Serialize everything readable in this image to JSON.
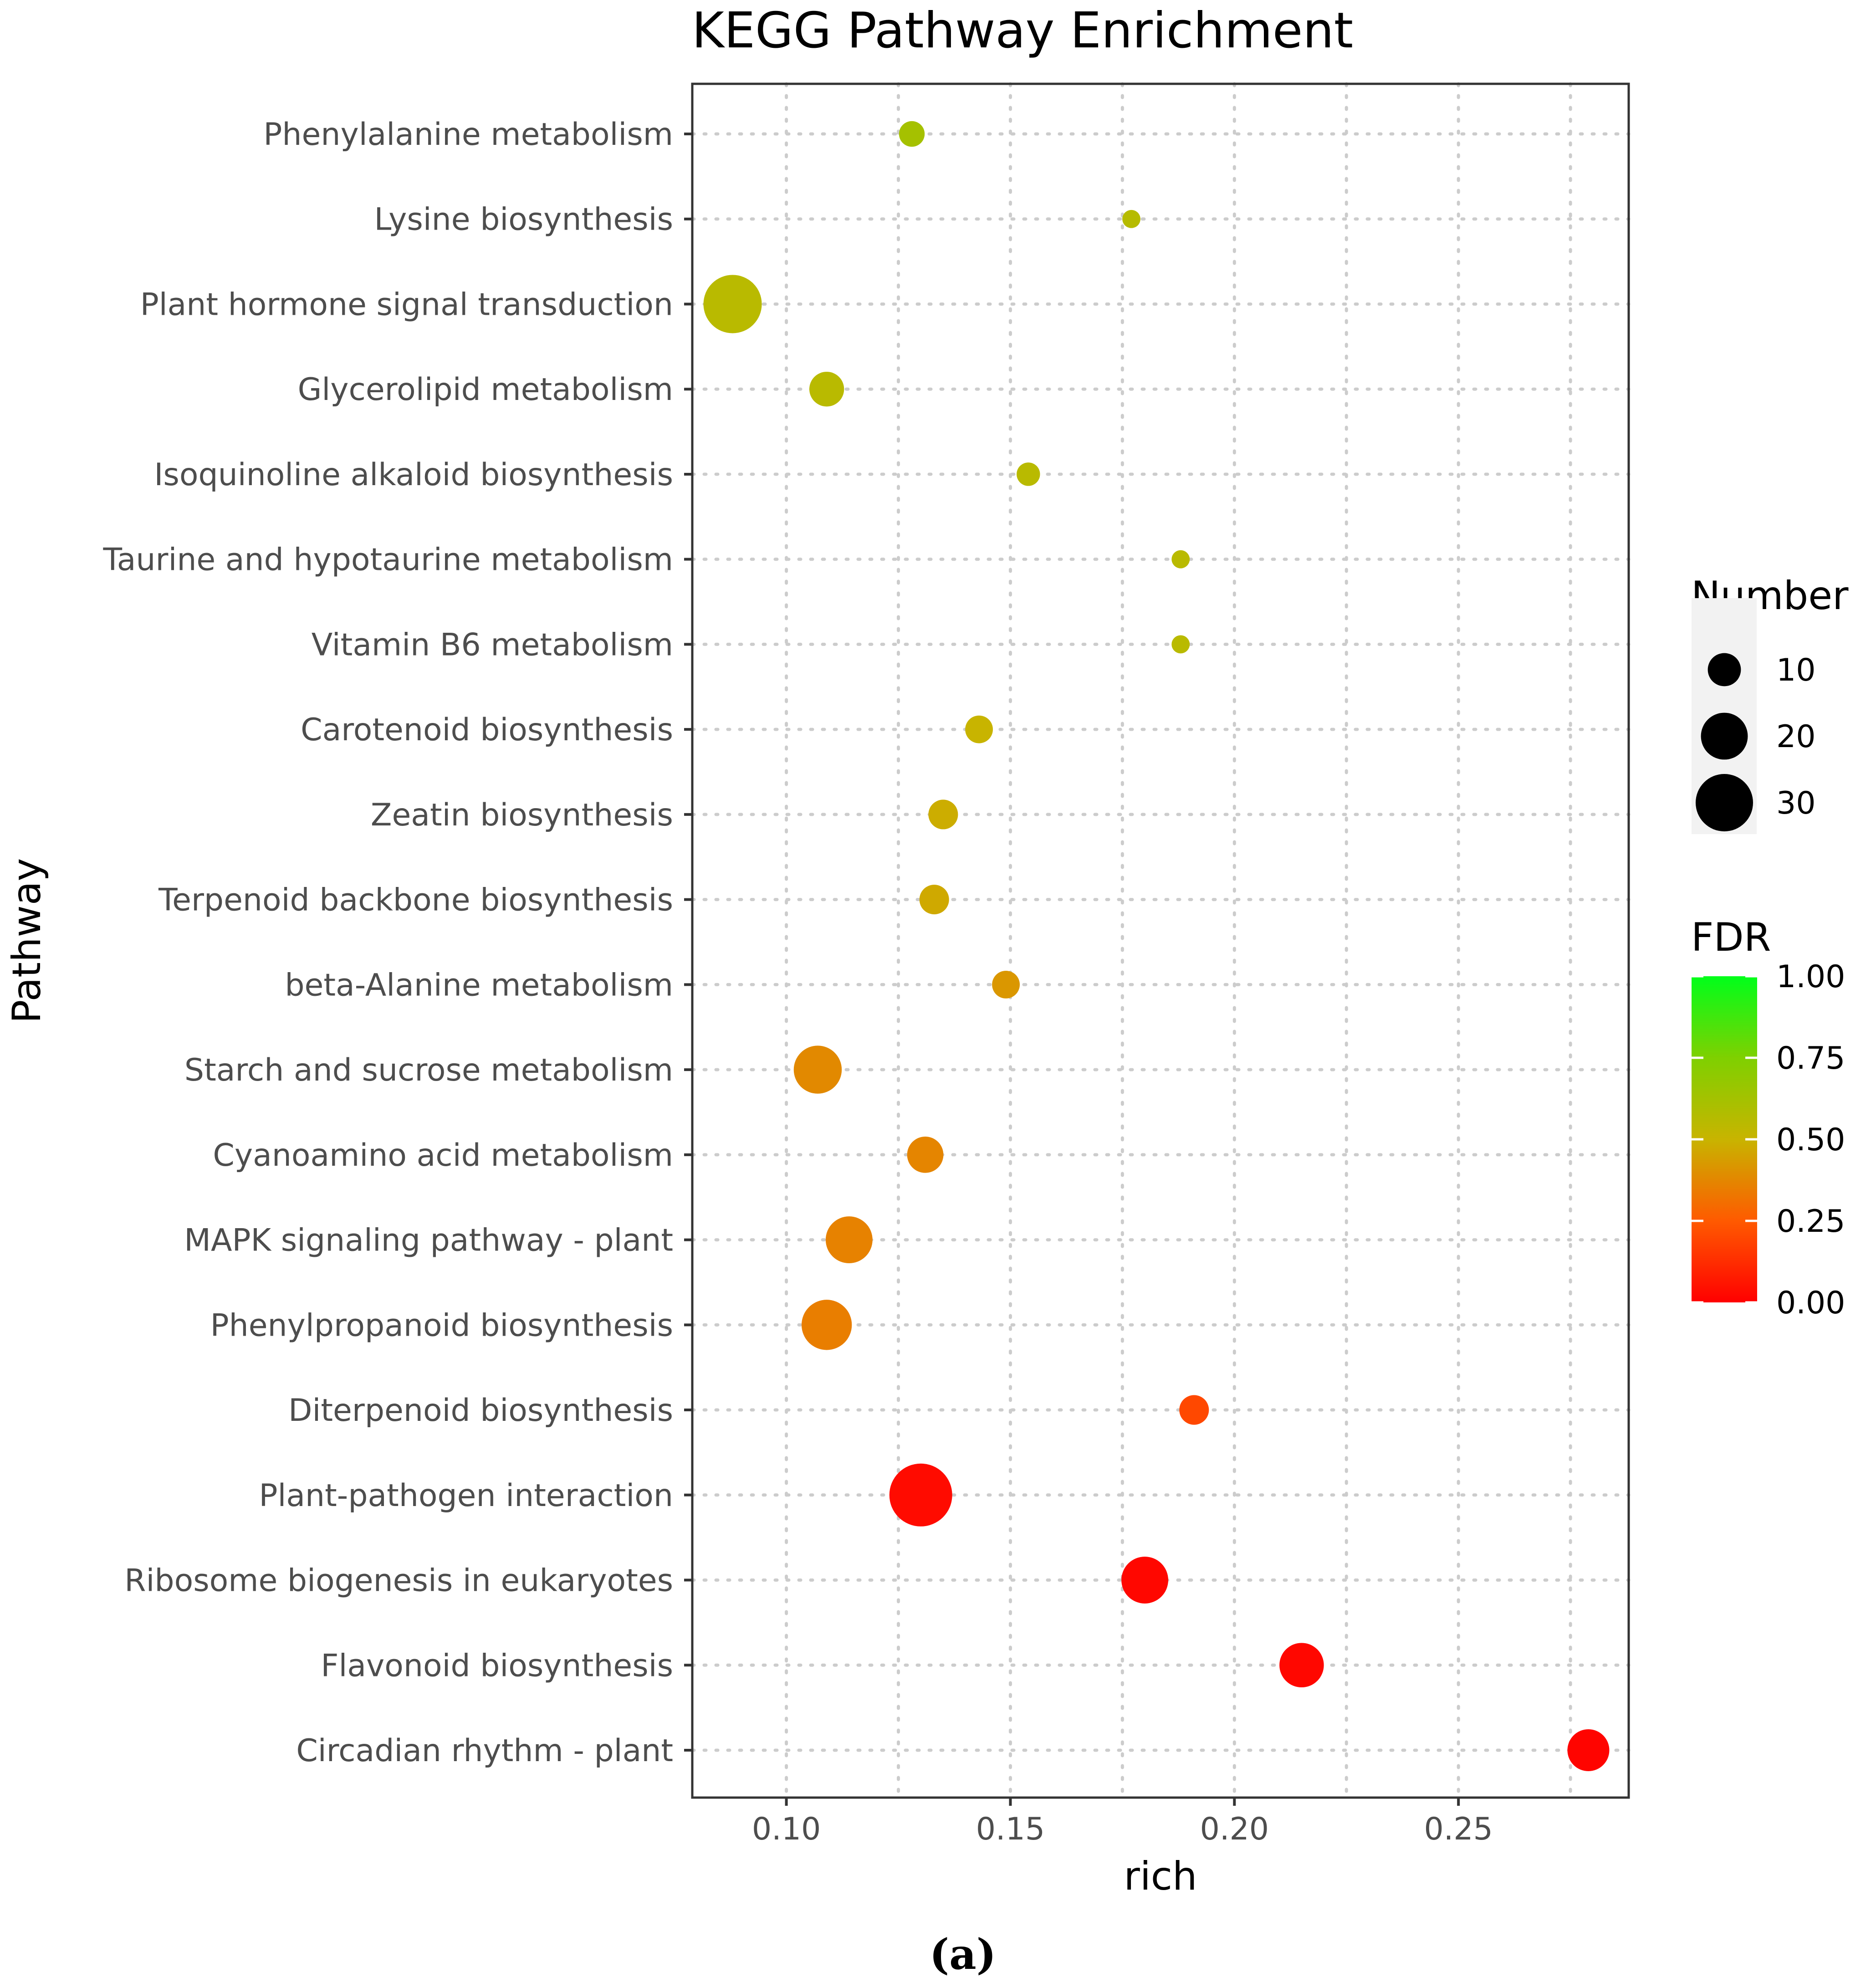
{
  "chart_data": {
    "type": "scatter",
    "title": "KEGG Pathway Enrichment",
    "xlabel": "rich",
    "ylabel": "Pathway",
    "xlim": [
      0.079,
      0.288
    ],
    "xticks": [
      0.1,
      0.15,
      0.2,
      0.25
    ],
    "xtick_labels": [
      "0.10",
      "0.15",
      "0.20",
      "0.25"
    ],
    "grid": true,
    "points": [
      {
        "pathway": "Phenylalanine metabolism",
        "rich": 0.128,
        "number": 6,
        "fdr": 0.62
      },
      {
        "pathway": "Lysine biosynthesis",
        "rich": 0.177,
        "number": 3,
        "fdr": 0.56
      },
      {
        "pathway": "Plant hormone signal transduction",
        "rich": 0.088,
        "number": 31,
        "fdr": 0.55
      },
      {
        "pathway": "Glycerolipid metabolism",
        "rich": 0.109,
        "number": 11,
        "fdr": 0.55
      },
      {
        "pathway": "Isoquinoline alkaloid biosynthesis",
        "rich": 0.154,
        "number": 5,
        "fdr": 0.55
      },
      {
        "pathway": "Taurine and hypotaurine metabolism",
        "rich": 0.188,
        "number": 3,
        "fdr": 0.55
      },
      {
        "pathway": "Vitamin B6 metabolism",
        "rich": 0.188,
        "number": 3,
        "fdr": 0.55
      },
      {
        "pathway": "Carotenoid biosynthesis",
        "rich": 0.143,
        "number": 7,
        "fdr": 0.5
      },
      {
        "pathway": "Zeatin biosynthesis",
        "rich": 0.135,
        "number": 8,
        "fdr": 0.48
      },
      {
        "pathway": "Terpenoid backbone biosynthesis",
        "rich": 0.133,
        "number": 8,
        "fdr": 0.47
      },
      {
        "pathway": "beta-Alanine metabolism",
        "rich": 0.149,
        "number": 7,
        "fdr": 0.42
      },
      {
        "pathway": "Starch and sucrose metabolism",
        "rich": 0.107,
        "number": 21,
        "fdr": 0.38
      },
      {
        "pathway": "Cyanoamino acid metabolism",
        "rich": 0.131,
        "number": 12,
        "fdr": 0.37
      },
      {
        "pathway": "MAPK signaling pathway - plant",
        "rich": 0.114,
        "number": 20,
        "fdr": 0.36
      },
      {
        "pathway": "Phenylpropanoid biosynthesis",
        "rich": 0.109,
        "number": 23,
        "fdr": 0.35
      },
      {
        "pathway": "Diterpenoid biosynthesis",
        "rich": 0.191,
        "number": 8,
        "fdr": 0.2
      },
      {
        "pathway": "Plant-pathogen interaction",
        "rich": 0.13,
        "number": 36,
        "fdr": 0.03
      },
      {
        "pathway": "Ribosome biogenesis in eukaryotes",
        "rich": 0.18,
        "number": 20,
        "fdr": 0.02
      },
      {
        "pathway": "Flavonoid biosynthesis",
        "rich": 0.215,
        "number": 18,
        "fdr": 0.02
      },
      {
        "pathway": "Circadian rhythm - plant",
        "rich": 0.279,
        "number": 16,
        "fdr": 0.01
      }
    ],
    "legend_size": {
      "title": "Number",
      "values": [
        10,
        20,
        30
      ],
      "labels": [
        "10",
        "20",
        "30"
      ]
    },
    "legend_color": {
      "title": "FDR",
      "range": [
        0,
        1
      ],
      "ticks": [
        "1.00",
        "0.75",
        "0.50",
        "0.25",
        "0.00"
      ],
      "colors": [
        "#ff0000",
        "#00ff00"
      ]
    }
  },
  "caption": "(a)"
}
